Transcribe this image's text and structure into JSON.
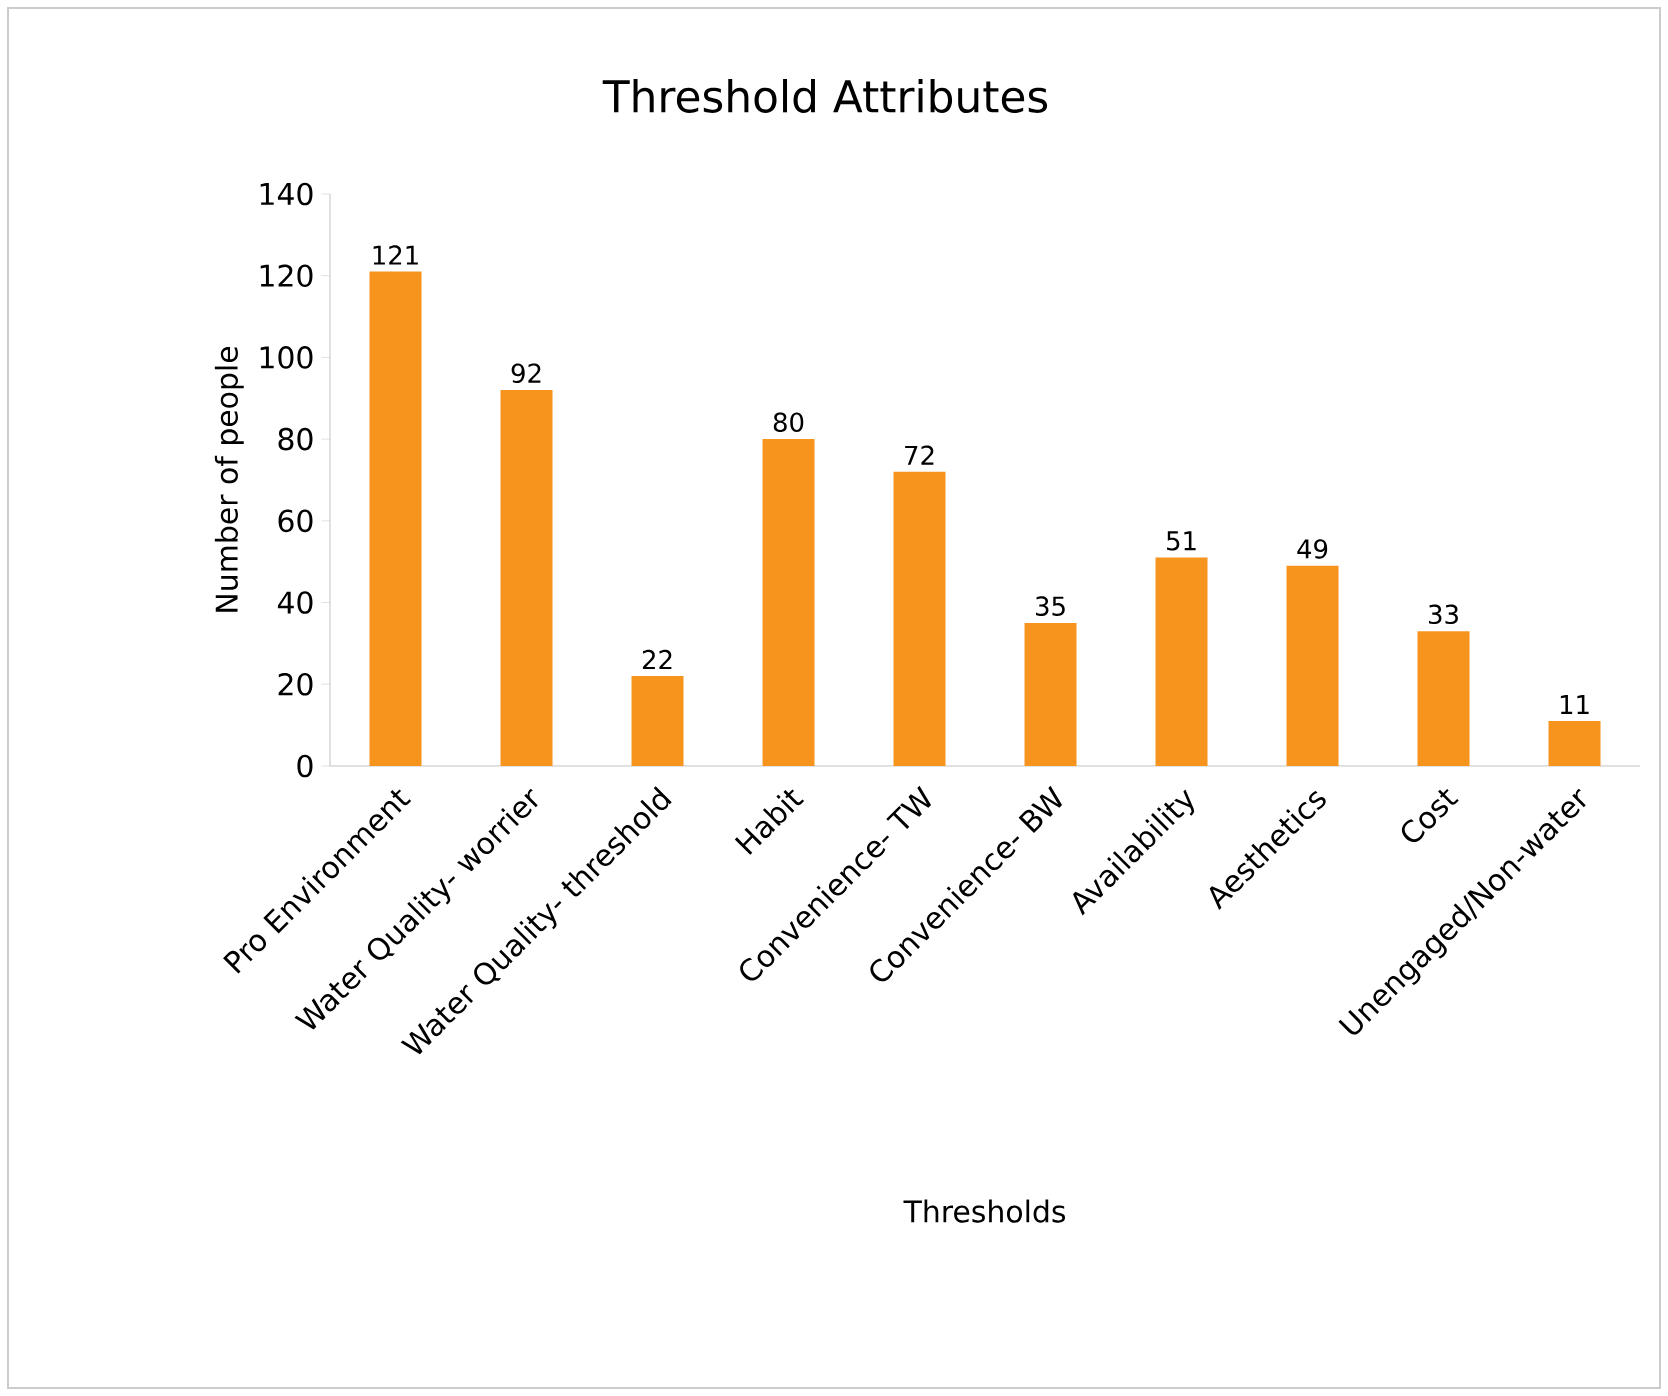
{
  "chart_data": {
    "type": "bar",
    "title": "Threshold Attributes",
    "xlabel": "Thresholds",
    "ylabel": "Number of people",
    "categories": [
      "Pro Environment",
      "Water Quality- worrier",
      "Water Quality- threshold",
      "Habit",
      "Convenience- TW",
      "Convenience- BW",
      "Availability",
      "Aesthetics",
      "Cost",
      "Unengaged/Non-water"
    ],
    "values": [
      121,
      92,
      22,
      80,
      72,
      35,
      51,
      49,
      33,
      11
    ],
    "color": "#f7941d",
    "ylim": [
      0,
      140
    ],
    "yticks": [
      0,
      20,
      40,
      60,
      80,
      100,
      120,
      140
    ],
    "data_labels": true
  }
}
